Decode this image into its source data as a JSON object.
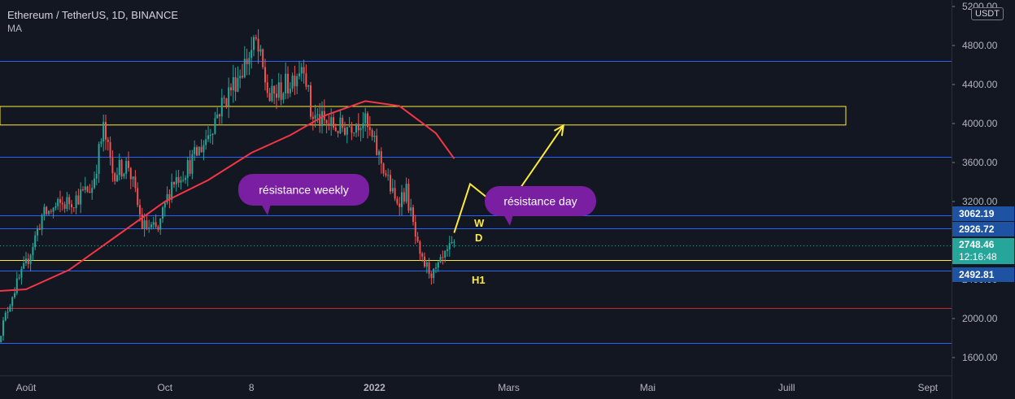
{
  "header": {
    "symbol": "Ethereum / TetherUS, 1D, BINANCE",
    "indicator": "MA"
  },
  "currency_button": "USDT",
  "price_tags": {
    "resistance_top": "3062.19",
    "resistance_mid": "2926.72",
    "current_price": "2748.46",
    "countdown": "12:16:48",
    "support": "2492.81"
  },
  "annotations": {
    "weekly_bubble": "résistance weekly",
    "day_bubble": "résistance day",
    "label_w": "W",
    "label_d": "D",
    "label_h1": "H1"
  },
  "colors": {
    "background": "#131722",
    "up_candle": "#26a69a",
    "down_candle": "#ef5350",
    "ma_line": "#f23645",
    "zone": "#ffeb3b",
    "level_blue": "#2962ff",
    "bubble": "#7b1fa2"
  },
  "chart_data": {
    "type": "candlestick",
    "title": "Ethereum / TetherUS, 1D, BINANCE",
    "yaxis": {
      "ticks": [
        "1600.00",
        "2000.00",
        "2400.00",
        "3200.00",
        "3600.00",
        "4000.00",
        "4400.00",
        "4800.00",
        "5200.00"
      ],
      "tick_values": [
        1600,
        2000,
        2400,
        3200,
        3600,
        4000,
        4400,
        4800,
        5200
      ],
      "ylim": [
        1430,
        5250
      ]
    },
    "xaxis": {
      "ticks": [
        "Août",
        "Oct",
        "8",
        "2022",
        "Mars",
        "Mai",
        "Juill",
        "Sept"
      ],
      "tick_dates": [
        "2021-08-01",
        "2021-10-01",
        "2021-11-08",
        "2022-01-01",
        "2022-03-01",
        "2022-05-01",
        "2022-07-01",
        "2022-09-01"
      ]
    },
    "series": [
      {
        "type": "ohlc",
        "close_path": [
          [
            "2021-07-20",
            1800
          ],
          [
            "2021-07-26",
            2250
          ],
          [
            "2021-08-01",
            2550
          ],
          [
            "2021-08-08",
            3050
          ],
          [
            "2021-08-15",
            3150
          ],
          [
            "2021-08-22",
            3220
          ],
          [
            "2021-08-30",
            3350
          ],
          [
            "2021-09-04",
            3940
          ],
          [
            "2021-09-08",
            3500
          ],
          [
            "2021-09-15",
            3580
          ],
          [
            "2021-09-21",
            2950
          ],
          [
            "2021-09-28",
            2900
          ],
          [
            "2021-10-04",
            3400
          ],
          [
            "2021-10-11",
            3550
          ],
          [
            "2021-10-18",
            3800
          ],
          [
            "2021-10-25",
            4150
          ],
          [
            "2021-11-01",
            4450
          ],
          [
            "2021-11-10",
            4820
          ],
          [
            "2021-11-16",
            4250
          ],
          [
            "2021-11-24",
            4400
          ],
          [
            "2021-12-01",
            4650
          ],
          [
            "2021-12-04",
            4100
          ],
          [
            "2021-12-10",
            4000
          ],
          [
            "2021-12-17",
            3950
          ],
          [
            "2021-12-27",
            4050
          ],
          [
            "2022-01-05",
            3550
          ],
          [
            "2022-01-10",
            3200
          ],
          [
            "2022-01-15",
            3300
          ],
          [
            "2022-01-21",
            2600
          ],
          [
            "2022-01-27",
            2450
          ],
          [
            "2022-02-03",
            2700
          ],
          [
            "2022-02-05",
            2748
          ]
        ]
      },
      {
        "name": "MA",
        "type": "line",
        "points": [
          [
            "2021-07-18",
            2280
          ],
          [
            "2021-08-01",
            2300
          ],
          [
            "2021-08-20",
            2500
          ],
          [
            "2021-09-10",
            2850
          ],
          [
            "2021-10-01",
            3200
          ],
          [
            "2021-10-20",
            3420
          ],
          [
            "2021-11-08",
            3700
          ],
          [
            "2021-11-25",
            3880
          ],
          [
            "2021-12-10",
            4080
          ],
          [
            "2021-12-28",
            4230
          ],
          [
            "2022-01-12",
            4180
          ],
          [
            "2022-01-28",
            3900
          ],
          [
            "2022-02-05",
            3640
          ]
        ]
      }
    ],
    "levels": [
      {
        "kind": "line",
        "value": 4640
      },
      {
        "kind": "line",
        "value": 3660
      },
      {
        "kind": "line",
        "value": 3062.19
      },
      {
        "kind": "line",
        "value": 2926.72
      },
      {
        "kind": "line",
        "value": 2492.81
      },
      {
        "kind": "line",
        "value": 1750
      },
      {
        "kind": "red_line",
        "value": 2110
      },
      {
        "kind": "zone",
        "low": 3985,
        "high": 4175
      },
      {
        "kind": "yellow_line",
        "value": 2600
      },
      {
        "kind": "dotted",
        "value": 2748.46
      }
    ],
    "projection_path": [
      [
        "2022-02-05",
        2880
      ],
      [
        "2022-02-12",
        3380
      ],
      [
        "2022-02-27",
        3100
      ],
      [
        "2022-03-25",
        3980
      ]
    ]
  }
}
